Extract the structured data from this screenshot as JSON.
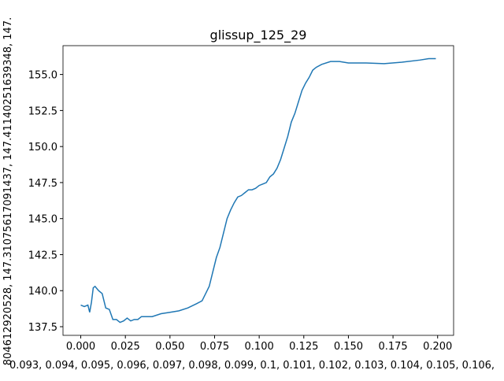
{
  "chart_data": {
    "type": "line",
    "title": "glissup_125_29",
    "x_label": "0.093, 0.094, 0.095, 0.096, 0.097, 0.098, 0.099, 0.1, 0.101, 0.102, 0.103, 0.104, 0.105, 0.106,",
    "y_label": "804612920528, 147.31075617091437, 147.41140251639348, 147.",
    "x": [
      0,
      0.002,
      0.004,
      0.005,
      0.006,
      0.007,
      0.008,
      0.01,
      0.012,
      0.014,
      0.016,
      0.018,
      0.02,
      0.022,
      0.024,
      0.026,
      0.028,
      0.03,
      0.032,
      0.034,
      0.036,
      0.04,
      0.045,
      0.05,
      0.055,
      0.06,
      0.065,
      0.068,
      0.07,
      0.072,
      0.074,
      0.076,
      0.078,
      0.08,
      0.082,
      0.084,
      0.086,
      0.088,
      0.09,
      0.092,
      0.094,
      0.096,
      0.098,
      0.1,
      0.102,
      0.104,
      0.106,
      0.108,
      0.11,
      0.112,
      0.114,
      0.116,
      0.118,
      0.12,
      0.122,
      0.124,
      0.126,
      0.128,
      0.13,
      0.132,
      0.135,
      0.14,
      0.145,
      0.15,
      0.16,
      0.17,
      0.18,
      0.19,
      0.195,
      0.199
    ],
    "series": [
      {
        "color": "#1f77b4",
        "values": [
          139.0,
          138.9,
          139.0,
          138.5,
          139.2,
          140.2,
          140.3,
          140.0,
          139.8,
          138.8,
          138.7,
          138.0,
          138.0,
          137.8,
          137.9,
          138.1,
          137.9,
          138.0,
          138.0,
          138.2,
          138.2,
          138.2,
          138.4,
          138.5,
          138.6,
          138.8,
          139.1,
          139.3,
          139.8,
          140.3,
          141.3,
          142.3,
          143.0,
          144.0,
          145.0,
          145.6,
          146.1,
          146.5,
          146.6,
          146.8,
          147.0,
          147.0,
          147.1,
          147.3,
          147.4,
          147.5,
          147.9,
          148.1,
          148.5,
          149.1,
          149.9,
          150.7,
          151.7,
          152.3,
          153.1,
          153.9,
          154.4,
          154.8,
          155.3,
          155.5,
          155.7,
          155.9,
          155.9,
          155.8,
          155.8,
          155.75,
          155.85,
          156.0,
          156.1,
          156.1
        ]
      }
    ],
    "xlim": [
      -0.00995,
      0.20895
    ],
    "ylim": [
      136.9,
      157.0
    ],
    "xticks": [
      {
        "value": 0,
        "label": "0.000"
      },
      {
        "value": 0.025,
        "label": "0.025"
      },
      {
        "value": 0.05,
        "label": "0.050"
      },
      {
        "value": 0.075,
        "label": "0.075"
      },
      {
        "value": 0.1,
        "label": "0.100"
      },
      {
        "value": 0.125,
        "label": "0.125"
      },
      {
        "value": 0.15,
        "label": "0.150"
      },
      {
        "value": 0.175,
        "label": "0.175"
      },
      {
        "value": 0.2,
        "label": "0.200"
      }
    ],
    "yticks": [
      137.5,
      {
        "value": 140,
        "label": "140.0"
      },
      142.5,
      {
        "value": 145,
        "label": "145.0"
      },
      147.5,
      {
        "value": 150,
        "label": "150.0"
      },
      152.5,
      {
        "value": 155,
        "label": "155.0"
      }
    ]
  }
}
